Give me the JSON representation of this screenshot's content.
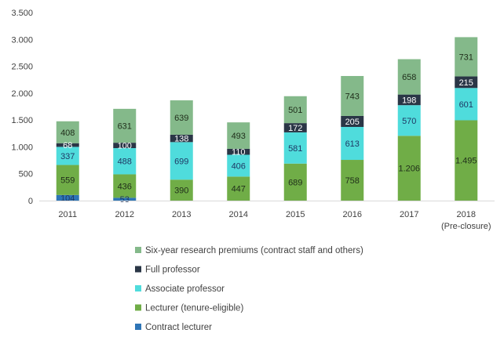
{
  "chart_data": {
    "type": "bar",
    "stacked": true,
    "categories": [
      "2011",
      "2012",
      "2013",
      "2014",
      "2015",
      "2016",
      "2017",
      "2018"
    ],
    "category_sublabels": [
      "",
      "",
      "",
      "",
      "",
      "",
      "",
      "(Pre-closure)"
    ],
    "ylim": [
      0,
      3500
    ],
    "yticks": [
      0,
      500,
      1000,
      1500,
      2000,
      2500,
      3000,
      3500
    ],
    "ytick_labels": [
      "0",
      "500",
      "1.000",
      "1.500",
      "2.000",
      "2.500",
      "3.000",
      "3.500"
    ],
    "grid": false,
    "legend_position": "bottom",
    "series": [
      {
        "name": "Contract lecturer",
        "color": "#2e75b6",
        "label_color": "#1f3864",
        "values": [
          104,
          53,
          0,
          0,
          0,
          0,
          0,
          0
        ],
        "labels": [
          "104",
          "53",
          "",
          "",
          "",
          "",
          "",
          ""
        ]
      },
      {
        "name": "Lecturer (tenure-eligible)",
        "color": "#70ad47",
        "label_color": "#1f2d1a",
        "values": [
          559,
          436,
          390,
          447,
          689,
          758,
          1206,
          1495
        ],
        "labels": [
          "559",
          "436",
          "390",
          "447",
          "689",
          "758",
          "1.206",
          "1.495"
        ]
      },
      {
        "name": "Associate professor",
        "color": "#4fdcdc",
        "label_color": "#1f3864",
        "values": [
          337,
          488,
          699,
          406,
          581,
          613,
          570,
          601
        ],
        "labels": [
          "337",
          "488",
          "699",
          "406",
          "581",
          "613",
          "570",
          "601"
        ]
      },
      {
        "name": "Full professor",
        "color": "#2a3646",
        "label_color": "#ffffff",
        "values": [
          68,
          100,
          138,
          110,
          172,
          205,
          198,
          215
        ],
        "labels": [
          "68",
          "100",
          "138",
          "110",
          "172",
          "205",
          "198",
          "215"
        ]
      },
      {
        "name": "Six-year research premiums (contract staff and others)",
        "color": "#84b98a",
        "label_color": "#1f2d1a",
        "values": [
          408,
          631,
          639,
          493,
          501,
          743,
          658,
          731
        ],
        "labels": [
          "408",
          "631",
          "639",
          "493",
          "501",
          "743",
          "658",
          "731"
        ]
      }
    ]
  }
}
